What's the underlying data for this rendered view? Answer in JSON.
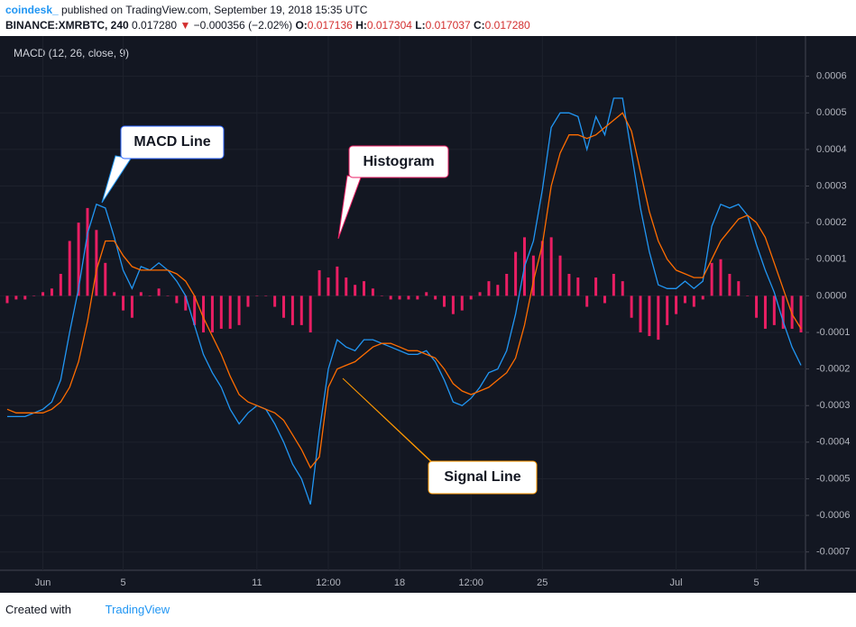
{
  "header": {
    "author": "coindesk_",
    "published": "published on TradingView.com, September 19, 2018 15:35 UTC",
    "symbol": "BINANCE:XMRBTC, 240",
    "last": "0.017280",
    "direction": "▼",
    "change": "−0.000356 (−2.02%)",
    "open_label": "O:",
    "open": "0.017136",
    "high_label": "H:",
    "high": "0.017304",
    "low_label": "L:",
    "low": "0.017037",
    "close_label": "C:",
    "close": "0.017280"
  },
  "footer": {
    "created": "Created with",
    "brand": "TradingView"
  },
  "chart_data": {
    "type": "macd",
    "title": "MACD (12, 26, close, 9)",
    "categories": [
      null,
      null,
      null,
      null,
      "Jun",
      null,
      null,
      null,
      null,
      null,
      null,
      null,
      null,
      "5",
      null,
      null,
      null,
      null,
      null,
      null,
      null,
      null,
      null,
      null,
      null,
      null,
      null,
      null,
      "11",
      null,
      null,
      null,
      null,
      null,
      null,
      null,
      "12:00",
      null,
      null,
      null,
      null,
      null,
      null,
      null,
      "18",
      null,
      null,
      null,
      null,
      null,
      null,
      null,
      "12:00",
      null,
      null,
      null,
      null,
      null,
      null,
      null,
      "25",
      null,
      null,
      null,
      null,
      null,
      null,
      null,
      null,
      null,
      null,
      null,
      null,
      null,
      null,
      "Jul",
      null,
      null,
      null,
      null,
      null,
      null,
      null,
      null,
      "5",
      null,
      null,
      null,
      null,
      null
    ],
    "series": [
      {
        "name": "MACD Line",
        "kind": "line",
        "color": "#2196f3",
        "values": [
          -0.00033,
          -0.00033,
          -0.00033,
          -0.00032,
          -0.00031,
          -0.00029,
          -0.00023,
          -0.0001,
          2e-05,
          0.00017,
          0.00025,
          0.00024,
          0.00016,
          7e-05,
          2e-05,
          8e-05,
          7e-05,
          9e-05,
          7e-05,
          4e-05,
          0,
          -8e-05,
          -0.00016,
          -0.00021,
          -0.00025,
          -0.00031,
          -0.00035,
          -0.00032,
          -0.0003,
          -0.00031,
          -0.00035,
          -0.0004,
          -0.00046,
          -0.0005,
          -0.00057,
          -0.00037,
          -0.0002,
          -0.00012,
          -0.00014,
          -0.00015,
          -0.00012,
          -0.00012,
          -0.00013,
          -0.00014,
          -0.00015,
          -0.00016,
          -0.00016,
          -0.00015,
          -0.00018,
          -0.00023,
          -0.00029,
          -0.0003,
          -0.00028,
          -0.00025,
          -0.00021,
          -0.0002,
          -0.00015,
          -5e-05,
          8e-05,
          0.00015,
          0.00029,
          0.00046,
          0.0005,
          0.0005,
          0.00049,
          0.0004,
          0.00049,
          0.00044,
          0.00054,
          0.00054,
          0.00039,
          0.00024,
          0.00012,
          3e-05,
          2e-05,
          2e-05,
          4e-05,
          2e-05,
          4e-05,
          0.00019,
          0.00025,
          0.00024,
          0.00025,
          0.00022,
          0.00014,
          7e-05,
          1e-05,
          -7e-05,
          -0.00014,
          -0.00019
        ]
      },
      {
        "name": "Signal Line",
        "kind": "line",
        "color": "#ff6d00",
        "values": [
          -0.00031,
          -0.00032,
          -0.00032,
          -0.00032,
          -0.00032,
          -0.00031,
          -0.00029,
          -0.00025,
          -0.00018,
          -7e-05,
          7e-05,
          0.00015,
          0.00015,
          0.00011,
          8e-05,
          7e-05,
          7e-05,
          7e-05,
          7e-05,
          6e-05,
          4e-05,
          0,
          -6e-05,
          -0.00011,
          -0.00016,
          -0.00022,
          -0.00027,
          -0.00029,
          -0.0003,
          -0.00031,
          -0.00032,
          -0.00034,
          -0.00038,
          -0.00042,
          -0.00047,
          -0.00044,
          -0.00025,
          -0.0002,
          -0.00019,
          -0.00018,
          -0.00016,
          -0.00014,
          -0.00013,
          -0.00013,
          -0.00014,
          -0.00015,
          -0.00015,
          -0.00016,
          -0.00017,
          -0.0002,
          -0.00024,
          -0.00026,
          -0.00027,
          -0.00026,
          -0.00025,
          -0.00023,
          -0.00021,
          -0.00017,
          -8e-05,
          4e-05,
          0.00014,
          0.0003,
          0.00039,
          0.00044,
          0.00044,
          0.00043,
          0.00044,
          0.00046,
          0.00048,
          0.0005,
          0.00045,
          0.00034,
          0.00023,
          0.00015,
          0.0001,
          7e-05,
          6e-05,
          5e-05,
          5e-05,
          0.0001,
          0.00015,
          0.00018,
          0.00021,
          0.00022,
          0.0002,
          0.00016,
          9e-05,
          2e-05,
          -5e-05,
          -9e-05
        ]
      },
      {
        "name": "Histogram",
        "kind": "bar",
        "color": "#e91e63",
        "values": [
          -2e-05,
          -1e-05,
          -1e-05,
          0,
          1e-05,
          2e-05,
          6e-05,
          0.00015,
          0.0002,
          0.00024,
          0.00018,
          9e-05,
          1e-05,
          -4e-05,
          -6e-05,
          1e-05,
          0,
          2e-05,
          0,
          -2e-05,
          -4e-05,
          -8e-05,
          -0.0001,
          -0.0001,
          -9e-05,
          -9e-05,
          -8e-05,
          -3e-05,
          0,
          0,
          -3e-05,
          -6e-05,
          -8e-05,
          -8e-05,
          -0.0001,
          7e-05,
          5e-05,
          8e-05,
          5e-05,
          3e-05,
          4e-05,
          2e-05,
          0,
          -1e-05,
          -1e-05,
          -1e-05,
          -1e-05,
          1e-05,
          -1e-05,
          -3e-05,
          -5e-05,
          -4e-05,
          -1e-05,
          1e-05,
          4e-05,
          3e-05,
          6e-05,
          0.00012,
          0.00016,
          0.00011,
          0.00015,
          0.00016,
          0.00011,
          6e-05,
          5e-05,
          -3e-05,
          5e-05,
          -2e-05,
          6e-05,
          4e-05,
          -6e-05,
          -0.0001,
          -0.00011,
          -0.00012,
          -8e-05,
          -5e-05,
          -2e-05,
          -3e-05,
          -1e-05,
          9e-05,
          0.0001,
          6e-05,
          4e-05,
          0,
          -6e-05,
          -9e-05,
          -8e-05,
          -9e-05,
          -9e-05,
          -0.0001
        ]
      }
    ],
    "ylim": [
      -0.00075,
      0.00071
    ],
    "yticks": [
      -0.0007,
      -0.0006,
      -0.0005,
      -0.0004,
      -0.0003,
      -0.0002,
      -0.0001,
      {
        "value": 0,
        "label": "0.0000"
      },
      0.0001,
      0.0002,
      0.0003,
      0.0004,
      0.0005,
      0.0006
    ],
    "grid": true
  }
}
